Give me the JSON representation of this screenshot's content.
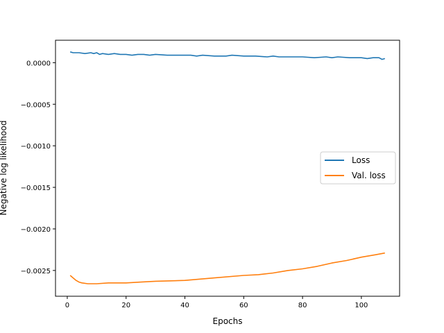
{
  "chart_data": {
    "type": "line",
    "title": "",
    "xlabel": "Epochs",
    "ylabel": "Negative log likelihood",
    "xlim": [
      -4,
      113
    ],
    "ylim": [
      -0.00281,
      0.00027
    ],
    "xticks": [
      0,
      20,
      40,
      60,
      80,
      100
    ],
    "xtick_labels": [
      "0",
      "20",
      "40",
      "60",
      "80",
      "100"
    ],
    "yticks": [
      0.0,
      -0.0005,
      -0.001,
      -0.0015,
      -0.002,
      -0.0025
    ],
    "ytick_labels": [
      "0.0000",
      "−0.0005",
      "−0.0010",
      "−0.0015",
      "−0.0020",
      "−0.0025"
    ],
    "grid": false,
    "legend_position": "center-right",
    "series": [
      {
        "name": "Loss",
        "color": "#1f77b4",
        "x": [
          1,
          2,
          4,
          6,
          8,
          9,
          10,
          11,
          12,
          14,
          16,
          18,
          20,
          22,
          24,
          26,
          28,
          30,
          34,
          38,
          42,
          44,
          46,
          50,
          54,
          56,
          60,
          64,
          68,
          70,
          72,
          76,
          80,
          84,
          88,
          90,
          92,
          96,
          100,
          102,
          104,
          106,
          107,
          108
        ],
        "values": [
          0.00013,
          0.00012,
          0.00012,
          0.00011,
          0.00012,
          0.00011,
          0.00012,
          0.0001,
          0.00011,
          0.0001,
          0.00011,
          0.0001,
          0.0001,
          9e-05,
          0.0001,
          0.0001,
          9e-05,
          0.0001,
          9e-05,
          9e-05,
          9e-05,
          8e-05,
          9e-05,
          8e-05,
          8e-05,
          9e-05,
          8e-05,
          8e-05,
          7e-05,
          8e-05,
          7e-05,
          7e-05,
          7e-05,
          6e-05,
          7e-05,
          6e-05,
          7e-05,
          6e-05,
          6e-05,
          5e-05,
          6e-05,
          6e-05,
          4e-05,
          5e-05
        ]
      },
      {
        "name": "Val. loss",
        "color": "#ff7f0e",
        "x": [
          1,
          2,
          3,
          4,
          5,
          7,
          10,
          14,
          20,
          25,
          30,
          40,
          50,
          60,
          65,
          70,
          75,
          80,
          85,
          90,
          95,
          100,
          105,
          108
        ],
        "values": [
          -0.00256,
          -0.00259,
          -0.00262,
          -0.00264,
          -0.00265,
          -0.00266,
          -0.00266,
          -0.00265,
          -0.00265,
          -0.00264,
          -0.00263,
          -0.00262,
          -0.00259,
          -0.00256,
          -0.00255,
          -0.00253,
          -0.0025,
          -0.00248,
          -0.00245,
          -0.00241,
          -0.00238,
          -0.00234,
          -0.00231,
          -0.00229
        ]
      }
    ]
  }
}
